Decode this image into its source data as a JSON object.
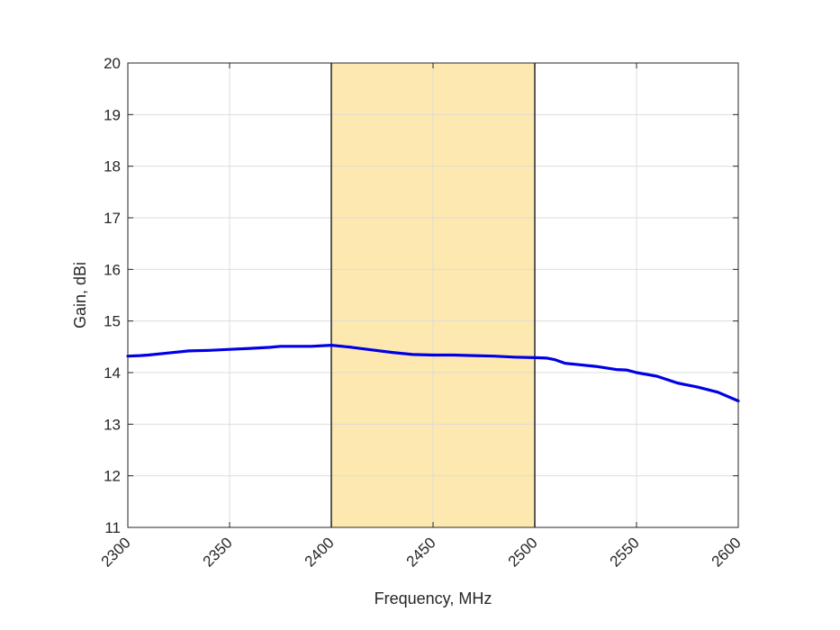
{
  "chart_data": {
    "type": "line",
    "title": "",
    "xlabel": "Frequency, MHz",
    "ylabel": "Gain, dBi",
    "xlim": [
      2300,
      2600
    ],
    "ylim": [
      11,
      20
    ],
    "xticks": [
      2300,
      2350,
      2400,
      2450,
      2500,
      2550,
      2600
    ],
    "yticks": [
      11,
      12,
      13,
      14,
      15,
      16,
      17,
      18,
      19,
      20
    ],
    "xtick_labels": [
      "2300",
      "2350",
      "2400",
      "2450",
      "2500",
      "2550",
      "2600"
    ],
    "ytick_labels": [
      "11",
      "12",
      "13",
      "14",
      "15",
      "16",
      "17",
      "18",
      "19",
      "20"
    ],
    "grid": true,
    "highlight_band": {
      "x_start": 2400,
      "x_end": 2500,
      "color": "#fde9b0"
    },
    "series": [
      {
        "color": "#0000e6",
        "x": [
          2300,
          2306,
          2310,
          2320,
          2330,
          2340,
          2350,
          2360,
          2370,
          2375,
          2380,
          2390,
          2400,
          2410,
          2420,
          2430,
          2440,
          2450,
          2460,
          2470,
          2480,
          2490,
          2500,
          2506,
          2510,
          2515,
          2520,
          2530,
          2540,
          2545,
          2550,
          2560,
          2570,
          2580,
          2590,
          2600
        ],
        "y": [
          14.32,
          14.33,
          14.34,
          14.38,
          14.42,
          14.43,
          14.45,
          14.47,
          14.49,
          14.51,
          14.51,
          14.51,
          14.53,
          14.49,
          14.44,
          14.39,
          14.35,
          14.34,
          14.34,
          14.33,
          14.32,
          14.3,
          14.29,
          14.28,
          14.25,
          14.18,
          14.16,
          14.12,
          14.06,
          14.05,
          14.0,
          13.93,
          13.8,
          13.72,
          13.62,
          13.45
        ]
      }
    ]
  }
}
